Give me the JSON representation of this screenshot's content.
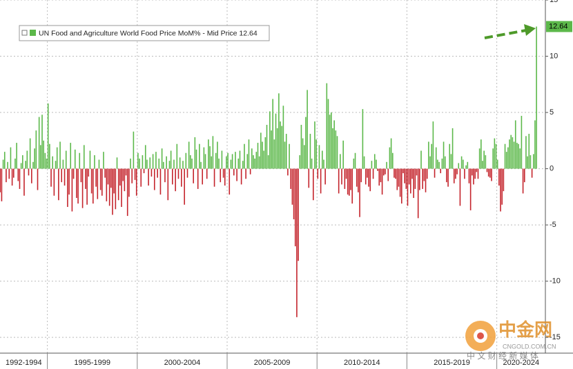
{
  "chart_data": {
    "type": "bar",
    "legend_label": "UN Food and Agriculture World Food Price MoM% - Mid Price 12.64",
    "positive_color": "#5cb84a",
    "negative_color": "#c4232b",
    "ylim": [
      -16.4,
      15
    ],
    "yticks": [
      15,
      10,
      5,
      0,
      -5,
      -10,
      -15
    ],
    "grid": true,
    "watermark": {
      "name": "中金网",
      "site": "CNGOLD.COM.CN",
      "slogan": "中 文 财 经 新 媒 体"
    },
    "categories": [
      "1992-1994",
      null,
      null,
      null,
      null,
      null,
      null,
      null,
      null,
      null,
      null,
      null,
      null,
      null,
      null,
      null,
      null,
      null,
      null,
      null,
      null,
      null,
      null,
      null,
      null,
      null,
      null,
      null,
      null,
      null,
      null,
      null,
      null,
      "1995-1999",
      null,
      null,
      null,
      null,
      null,
      null,
      null,
      null,
      null,
      null,
      null,
      null,
      null,
      null,
      null,
      null,
      null,
      null,
      null,
      null,
      null,
      null,
      null,
      null,
      null,
      null,
      null,
      null,
      null,
      null,
      null,
      null,
      null,
      null,
      null,
      null,
      null,
      null,
      null,
      null,
      null,
      null,
      null,
      null,
      null,
      null,
      null,
      null,
      null,
      null,
      null,
      null,
      null,
      null,
      null,
      null,
      null,
      null,
      null,
      "2000-2004",
      null,
      null,
      null,
      null,
      null,
      null,
      null,
      null,
      null,
      null,
      null,
      null,
      null,
      null,
      null,
      null,
      null,
      null,
      null,
      null,
      null,
      null,
      null,
      null,
      null,
      null,
      null,
      null,
      null,
      null,
      null,
      null,
      null,
      null,
      null,
      null,
      null,
      null,
      null,
      null,
      null,
      null,
      null,
      null,
      null,
      null,
      null,
      null,
      null,
      null,
      null,
      null,
      null,
      null,
      null,
      null,
      null,
      null,
      null,
      "2005-2009",
      null,
      null,
      null,
      null,
      null,
      null,
      null,
      null,
      null,
      null,
      null,
      null,
      null,
      null,
      null,
      null,
      null,
      null,
      null,
      null,
      null,
      null,
      null,
      null,
      null,
      null,
      null,
      null,
      null,
      null,
      null,
      null,
      null,
      null,
      null,
      null,
      null,
      null,
      null,
      null,
      null,
      null,
      null,
      null,
      null,
      null,
      null,
      null,
      null,
      null,
      null,
      null,
      null,
      null,
      null,
      null,
      null,
      null,
      null,
      "2010-2014",
      null,
      null,
      null,
      null,
      null,
      null,
      null,
      null,
      null,
      null,
      null,
      null,
      null,
      null,
      null,
      null,
      null,
      null,
      null,
      null,
      null,
      null,
      null,
      null,
      null,
      null,
      null,
      null,
      null,
      null,
      null,
      null,
      null,
      null,
      null,
      null,
      null,
      null,
      null,
      null,
      null,
      null,
      null,
      null,
      null,
      null,
      null,
      null,
      null,
      null,
      null,
      null,
      null,
      null,
      null,
      null,
      null,
      null,
      null,
      "2015-2019",
      null,
      null,
      null,
      null,
      null,
      null,
      null,
      null,
      null,
      null,
      null,
      null,
      null,
      null,
      null,
      null,
      null,
      null,
      null,
      null,
      null,
      null,
      null,
      null,
      null,
      null,
      null,
      null,
      null,
      null,
      null,
      null,
      null,
      null,
      null,
      null,
      null,
      null,
      null,
      null,
      null,
      null,
      null,
      null,
      null,
      null,
      null,
      null,
      null,
      null,
      null,
      null,
      null,
      null,
      null,
      null,
      null,
      null,
      null,
      "2020-2024",
      null,
      null,
      null,
      null,
      null,
      null,
      null,
      null,
      null,
      null,
      null,
      null,
      null,
      null,
      null,
      null,
      null,
      null,
      null,
      null,
      null,
      null,
      null,
      null,
      null,
      null
    ],
    "values": [
      1.2,
      -2.1,
      -2.9,
      0.8,
      1.5,
      -1.2,
      0.6,
      -0.9,
      1.9,
      -1.5,
      -0.8,
      0.9,
      2.3,
      -1.1,
      -1.8,
      0.5,
      1.2,
      -2.4,
      0.7,
      1.6,
      -0.6,
      2.7,
      -1.3,
      0.6,
      1.8,
      3.4,
      -1.9,
      4.6,
      2.1,
      4.8,
      2.5,
      1.4,
      0.9,
      5.8,
      2.2,
      -1.6,
      1.1,
      -2.4,
      0.7,
      1.9,
      -2.8,
      2.4,
      -1.2,
      0.8,
      -1.5,
      1.6,
      -3.4,
      -2.3,
      2.3,
      -3.8,
      -0.9,
      1.7,
      -2.6,
      -3.1,
      1.4,
      -1.2,
      -3.5,
      2.1,
      -1.8,
      -3.2,
      -0.7,
      1.6,
      -2.2,
      -3.1,
      1.2,
      -1.6,
      -2.7,
      0.8,
      -1.9,
      -2.4,
      1.5,
      -0.8,
      -2.9,
      -1.4,
      -3.3,
      -1.7,
      -4.1,
      -2.2,
      -3.6,
      1.0,
      -2.8,
      -1.5,
      -3.4,
      -1.1,
      -2.0,
      -0.6,
      -4.2,
      -2.5,
      0.9,
      -1.3,
      3.3,
      -1.0,
      -2.4,
      1.4,
      0.9,
      -1.6,
      1.2,
      -0.4,
      2.1,
      0.8,
      -1.5,
      1.0,
      -0.7,
      1.3,
      -1.9,
      1.5,
      -0.8,
      0.9,
      -2.3,
      1.8,
      0.6,
      -1.2,
      1.1,
      -2.8,
      0.7,
      1.6,
      -1.4,
      0.8,
      -2.0,
      2.2,
      -0.9,
      1.0,
      -1.6,
      0.7,
      -3.2,
      1.4,
      -0.8,
      2.4,
      1.2,
      0.9,
      -1.3,
      2.8,
      1.7,
      -1.8,
      2.2,
      0.6,
      -1.4,
      1.9,
      1.3,
      -0.9,
      2.6,
      2.0,
      1.1,
      2.9,
      -1.6,
      1.4,
      2.4,
      0.9,
      -1.2,
      1.6,
      -0.8,
      -1.5,
      1.1,
      1.4,
      -2.3,
      0.8,
      1.3,
      -0.6,
      1.5,
      -1.1,
      0.9,
      1.6,
      -1.4,
      0.7,
      2.2,
      -0.9,
      1.3,
      2.6,
      -0.5,
      1.8,
      1.2,
      0.9,
      1.5,
      2.3,
      1.1,
      3.2,
      2.4,
      1.6,
      2.8,
      3.9,
      1.2,
      5.1,
      3.4,
      6.2,
      2.6,
      4.9,
      3.6,
      6.7,
      4.2,
      3.8,
      5.6,
      2.4,
      3.1,
      -0.6,
      2.2,
      -1.8,
      -3.2,
      -4.5,
      -6.9,
      -13.2,
      -8.2,
      1.2,
      3.9,
      2.7,
      2.1,
      4.6,
      7.0,
      -1.7,
      3.1,
      0.9,
      -2.8,
      4.2,
      2.6,
      -0.9,
      2.1,
      -2.2,
      1.6,
      0.8,
      -1.4,
      7.6,
      6.2,
      4.8,
      5.0,
      3.6,
      4.3,
      3.4,
      2.9,
      -2.2,
      1.3,
      -1.4,
      2.5,
      -1.8,
      -0.9,
      -2.3,
      -2.4,
      -1.9,
      -3.1,
      0.9,
      1.4,
      -1.6,
      -2.1,
      -4.3,
      -1.2,
      5.3,
      1.1,
      -1.4,
      -0.8,
      -1.6,
      -2.0,
      0.7,
      -0.9,
      1.3,
      0.8,
      -0.2,
      -1.5,
      -1.2,
      -2.3,
      -0.6,
      -0.5,
      0.6,
      -1.1,
      1.9,
      2.7,
      1.4,
      -0.8,
      -0.9,
      -1.9,
      -1.6,
      -2.5,
      -3.1,
      -0.4,
      -1.3,
      -1.8,
      -3.3,
      -1.4,
      -2.2,
      -0.9,
      -2.6,
      -1.8,
      -0.6,
      -4.4,
      -1.9,
      1.6,
      -1.8,
      -1.1,
      -2.1,
      -0.9,
      2.4,
      1.1,
      2.2,
      4.2,
      -0.8,
      1.9,
      0.8,
      0.6,
      -0.4,
      0.9,
      2.4,
      1.1,
      -1.2,
      -1.6,
      2.2,
      1.3,
      3.6,
      -1.3,
      -0.9,
      -0.5,
      0.5,
      -3.3,
      1.1,
      0.8,
      -0.9,
      0.3,
      0.6,
      -1.3,
      -3.7,
      -0.6,
      -1.4,
      -0.9,
      -0.3,
      -0.9,
      1.8,
      2.6,
      0.7,
      1.6,
      1.2,
      -0.3,
      -0.7,
      -0.8,
      -1.1,
      1.8,
      2.7,
      2.2,
      0.8,
      -1.5,
      -3.8,
      -3.2,
      -2.0,
      2.2,
      1.5,
      1.9,
      2.6,
      3.0,
      2.8,
      2.4,
      4.3,
      2.3,
      2.2,
      1.8,
      4.7,
      -2.2,
      -1.2,
      2.9,
      1.1,
      3.1,
      1.2,
      -0.8,
      1.3,
      4.3,
      12.64
    ]
  }
}
